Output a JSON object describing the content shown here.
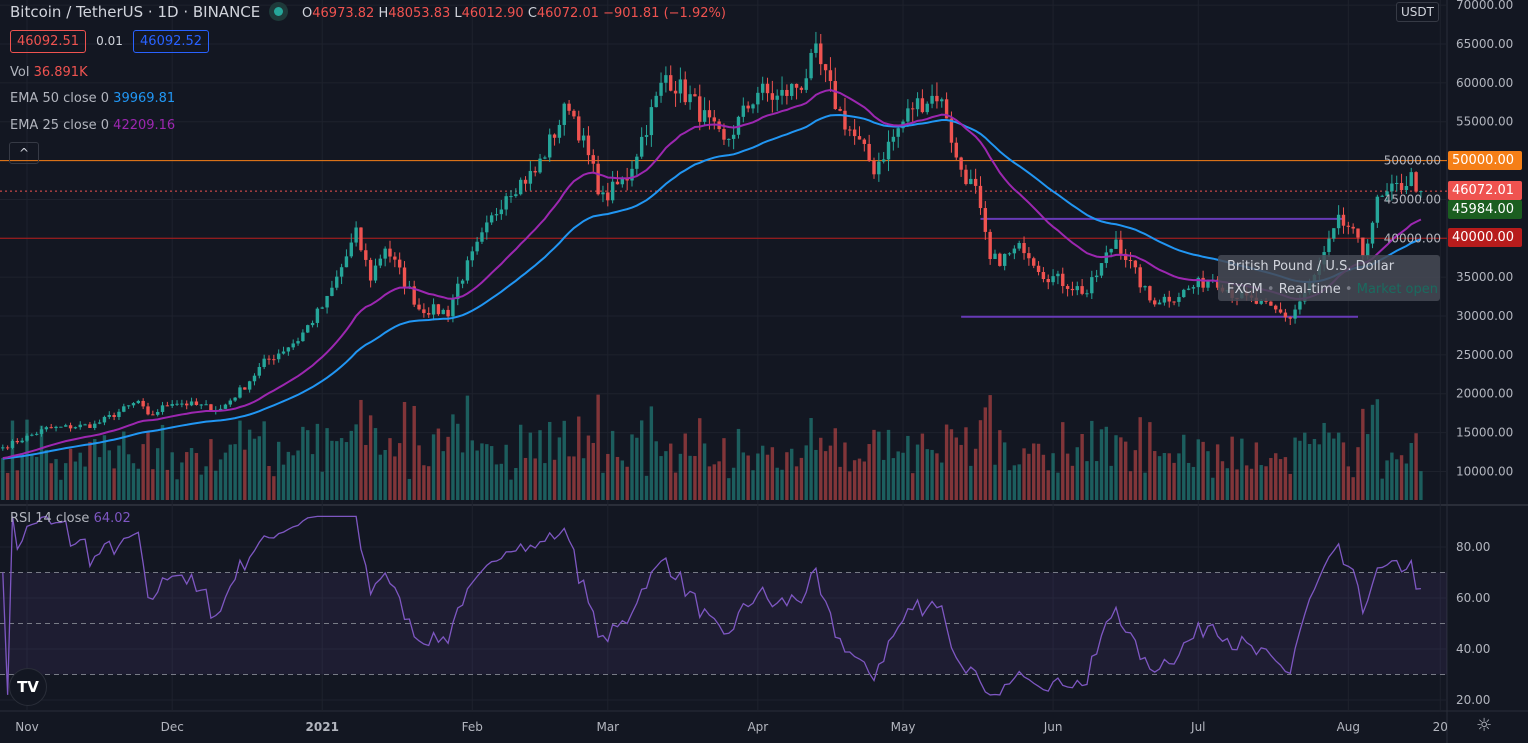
{
  "header": {
    "symbol": "Bitcoin / TetherUS",
    "interval": "1D",
    "exchange": "BINANCE",
    "o_label": "O",
    "o": "46973.82",
    "h_label": "H",
    "h": "48053.83",
    "l_label": "L",
    "l": "46012.90",
    "c_label": "C",
    "c": "46072.01",
    "change": "−901.81 (−1.92%)",
    "bid": "46092.51",
    "spread": "0.01",
    "ask": "46092.52"
  },
  "indicators": {
    "vol_label": "Vol",
    "vol_value": "36.891K",
    "ema50_label": "EMA 50 close 0",
    "ema50_value": "39969.81",
    "ema25_label": "EMA 25 close 0",
    "ema25_value": "42209.16",
    "rsi_label": "RSI 14 close",
    "rsi_value": "64.02"
  },
  "currency": "USDT",
  "price_tags": {
    "alert": "50000.00",
    "last": "46072.01",
    "green": "45984.00",
    "level": "40000.00"
  },
  "tooltip": {
    "title": "British Pound / U.S. Dollar",
    "source": "FXCM",
    "mode": "Real-time",
    "status": "Market open"
  },
  "colors": {
    "up": "#26a69a",
    "down": "#ef5350",
    "ema50": "#2196f3",
    "ema25": "#9c27b0",
    "rsi": "#7e57c2",
    "alert": "#f57f17"
  },
  "chart_data": {
    "type": "candlestick",
    "title": "Bitcoin / TetherUS · 1D · BINANCE",
    "price_ticks": [
      "70000.00",
      "65000.00",
      "60000.00",
      "55000.00",
      "50000.00",
      "45000.00",
      "40000.00",
      "35000.00",
      "30000.00",
      "25000.00",
      "20000.00",
      "15000.00",
      "10000.00"
    ],
    "rsi_ticks": [
      "80.00",
      "60.00",
      "40.00",
      "20.00"
    ],
    "time_ticks": [
      {
        "label": "Nov",
        "date": "2020-11-01"
      },
      {
        "label": "Dec",
        "date": "2020-12-01"
      },
      {
        "label": "2021",
        "date": "2021-01-01"
      },
      {
        "label": "Feb",
        "date": "2021-02-01"
      },
      {
        "label": "Mar",
        "date": "2021-03-01"
      },
      {
        "label": "Apr",
        "date": "2021-04-01"
      },
      {
        "label": "May",
        "date": "2021-05-01"
      },
      {
        "label": "Jun",
        "date": "2021-06-01"
      },
      {
        "label": "Jul",
        "date": "2021-07-01"
      },
      {
        "label": "Aug",
        "date": "2021-08-01"
      },
      {
        "label": "20",
        "date": "2021-08-20"
      }
    ],
    "ylim": [
      7000,
      70500
    ],
    "close_keypoints": [
      [
        "2020-10-27",
        13100
      ],
      [
        "2020-11-05",
        15500
      ],
      [
        "2020-11-15",
        16000
      ],
      [
        "2020-11-24",
        19000
      ],
      [
        "2020-11-26",
        17000
      ],
      [
        "2020-12-01",
        19000
      ],
      [
        "2020-12-11",
        18000
      ],
      [
        "2020-12-16",
        21000
      ],
      [
        "2020-12-20",
        24000
      ],
      [
        "2020-12-27",
        27000
      ],
      [
        "2021-01-02",
        32000
      ],
      [
        "2021-01-08",
        40500
      ],
      [
        "2021-01-11",
        35000
      ],
      [
        "2021-01-14",
        39000
      ],
      [
        "2021-01-21",
        31000
      ],
      [
        "2021-01-27",
        30500
      ],
      [
        "2021-01-29",
        34000
      ],
      [
        "2021-02-08",
        46000
      ],
      [
        "2021-02-14",
        48500
      ],
      [
        "2021-02-21",
        57500
      ],
      [
        "2021-02-28",
        45000
      ],
      [
        "2021-03-05",
        48000
      ],
      [
        "2021-03-13",
        61000
      ],
      [
        "2021-03-18",
        58000
      ],
      [
        "2021-03-25",
        52000
      ],
      [
        "2021-04-01",
        59000
      ],
      [
        "2021-04-05",
        58000
      ],
      [
        "2021-04-10",
        60000
      ],
      [
        "2021-04-13",
        63500
      ],
      [
        "2021-04-18",
        56000
      ],
      [
        "2021-04-25",
        49000
      ],
      [
        "2021-05-03",
        57000
      ],
      [
        "2021-05-08",
        58500
      ],
      [
        "2021-05-10",
        56000
      ],
      [
        "2021-05-12",
        50000
      ],
      [
        "2021-05-16",
        46000
      ],
      [
        "2021-05-19",
        37000
      ],
      [
        "2021-05-22",
        37500
      ],
      [
        "2021-05-26",
        39000
      ],
      [
        "2021-05-30",
        35500
      ],
      [
        "2021-06-08",
        33000
      ],
      [
        "2021-06-14",
        40000
      ],
      [
        "2021-06-21",
        32000
      ],
      [
        "2021-06-26",
        32500
      ],
      [
        "2021-07-04",
        35000
      ],
      [
        "2021-07-08",
        33000
      ],
      [
        "2021-07-20",
        29800
      ],
      [
        "2021-07-25",
        35000
      ],
      [
        "2021-07-30",
        42000
      ],
      [
        "2021-08-01",
        41500
      ],
      [
        "2021-08-04",
        38000
      ],
      [
        "2021-08-07",
        44500
      ],
      [
        "2021-08-10",
        46000
      ],
      [
        "2021-08-14",
        47800
      ],
      [
        "2021-08-16",
        46072
      ]
    ],
    "horizontal_lines": [
      {
        "price": 50000,
        "color": "#f57f17"
      },
      {
        "price": 40000,
        "color": "#b71c1c"
      },
      {
        "price": 46072.01,
        "color": "#ef5350",
        "style": "dotted"
      }
    ],
    "trend_lines": [
      {
        "price": 42500,
        "from": "2021-05-17",
        "to": "2021-07-31"
      },
      {
        "price": 29900,
        "from": "2021-05-13",
        "to": "2021-08-03"
      }
    ],
    "rsi_bands": [
      70,
      50,
      30
    ]
  }
}
